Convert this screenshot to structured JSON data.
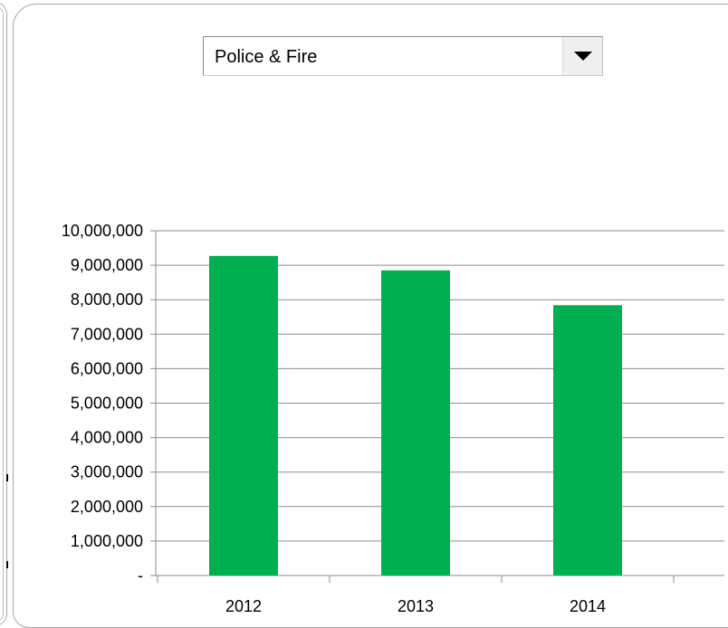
{
  "filter": {
    "selected": "Police & Fire"
  },
  "chart_data": {
    "type": "bar",
    "title": "",
    "xlabel": "",
    "ylabel": "",
    "categories": [
      "2012",
      "2013",
      "2014"
    ],
    "series": [
      {
        "values": [
          9270000,
          8850000,
          7840000
        ]
      }
    ],
    "ylim": [
      0,
      10000000
    ],
    "yticks": [
      0,
      1000000,
      2000000,
      3000000,
      4000000,
      5000000,
      6000000,
      7000000,
      8000000,
      9000000,
      10000000
    ],
    "ytick_labels": [
      "-",
      "1,000,000",
      "2,000,000",
      "3,000,000",
      "4,000,000",
      "5,000,000",
      "6,000,000",
      "7,000,000",
      "8,000,000",
      "9,000,000",
      "10,000,000"
    ],
    "grid": true,
    "legend": "none",
    "colors": {
      "bar": "#00b050",
      "grid": "#8c8c8c",
      "axis": "#8c8c8c"
    }
  }
}
